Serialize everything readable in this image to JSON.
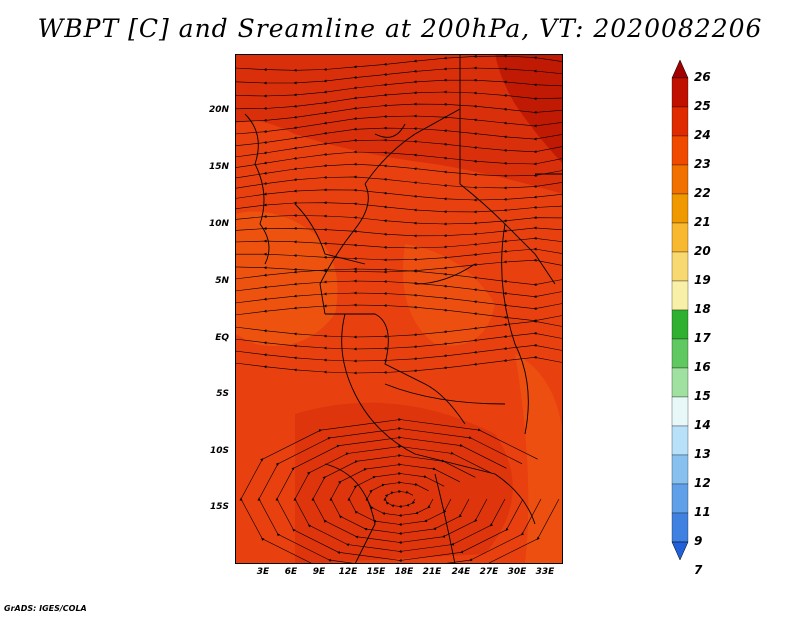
{
  "title": "WBPT [C] and Sreamline at 200hPa, VT: 2020082206",
  "credit": "GrADS: IGES/COLA",
  "map": {
    "lat_labels": [
      "20N",
      "15N",
      "10N",
      "5N",
      "EQ",
      "5S",
      "10S",
      "15S"
    ],
    "lon_labels": [
      "3E",
      "6E",
      "9E",
      "12E",
      "15E",
      "18E",
      "21E",
      "24E",
      "27E",
      "30E",
      "33E"
    ],
    "colors": {
      "base": "#e8400f",
      "warm": "#d42a0a",
      "hot": "#c01a05",
      "cool": "#f05a10",
      "line": "#000000"
    }
  },
  "colorbar": {
    "levels": [
      "26",
      "25",
      "24",
      "23",
      "22",
      "21",
      "20",
      "19",
      "18",
      "17",
      "16",
      "15",
      "14",
      "13",
      "12",
      "11",
      "9",
      "7"
    ],
    "colors": [
      "#a00000",
      "#c01000",
      "#e02a00",
      "#f04a00",
      "#f07000",
      "#f09800",
      "#f8b830",
      "#f8d870",
      "#f8f0a8",
      "#30b030",
      "#60c860",
      "#a0e0a0",
      "#e8f8f8",
      "#b8e0f8",
      "#88c0f0",
      "#60a0e8",
      "#4080e0",
      "#2060d8"
    ]
  }
}
